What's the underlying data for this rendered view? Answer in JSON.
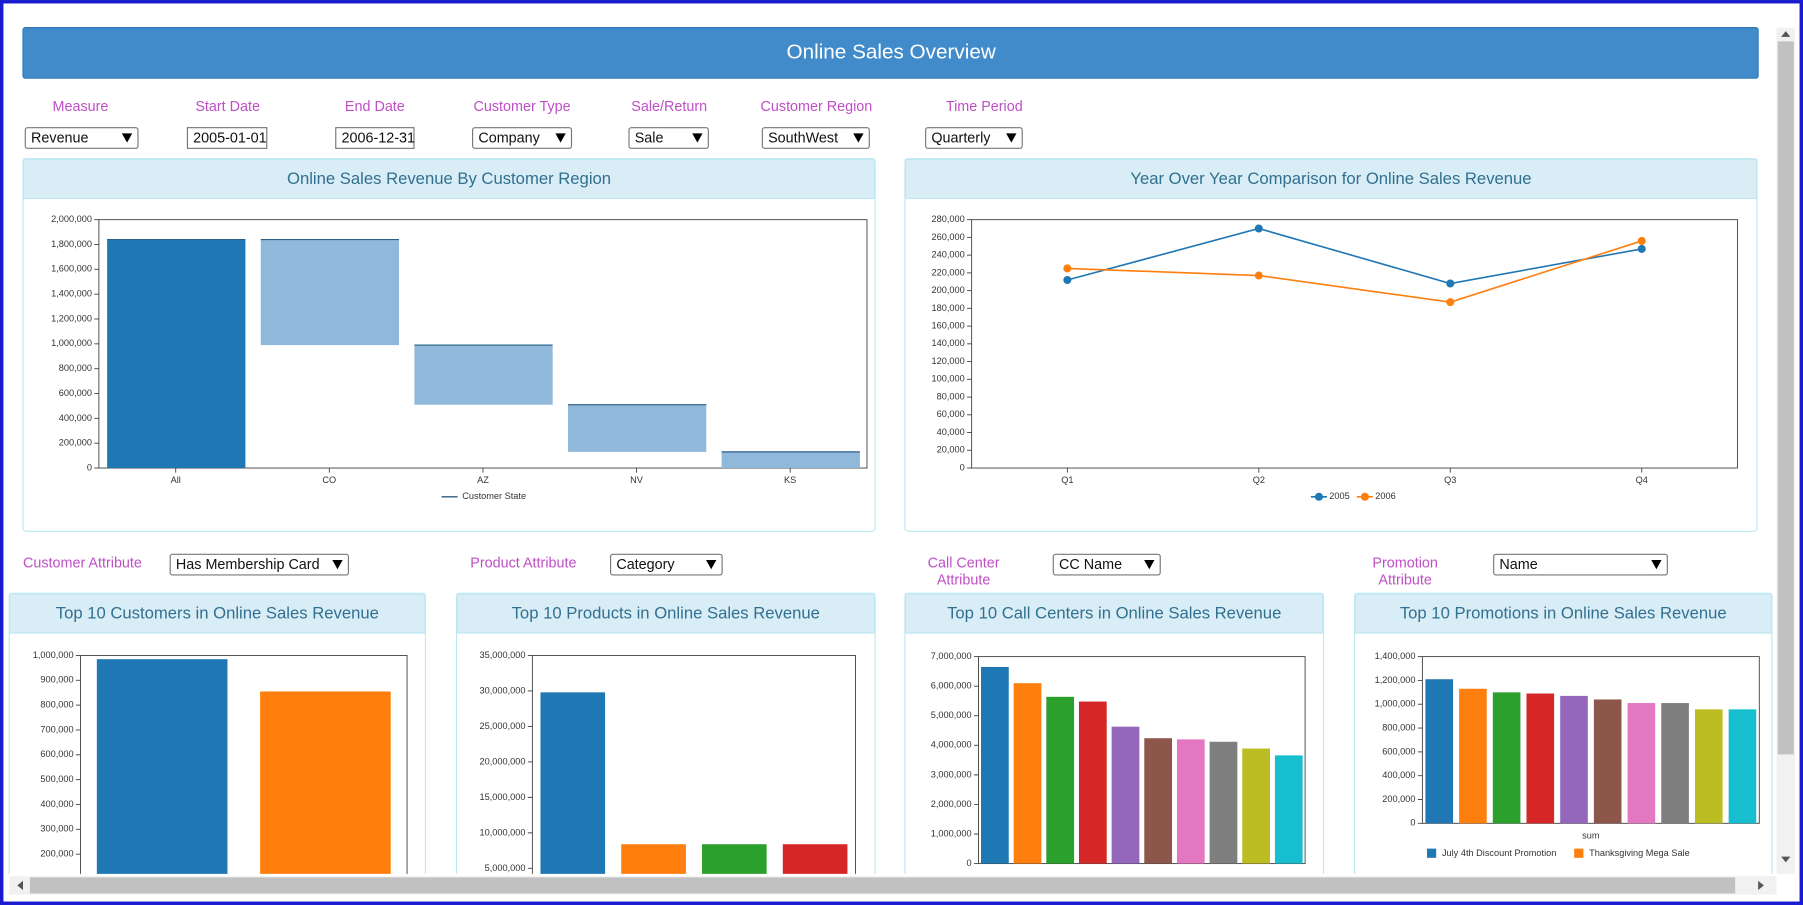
{
  "header": {
    "title": "Online Sales Overview"
  },
  "filters": [
    {
      "label": [
        "Measure"
      ],
      "value": "Revenue"
    },
    {
      "label": [
        "Start Date"
      ],
      "value": "2005-01-01"
    },
    {
      "label": [
        "End Date"
      ],
      "value": "2006-12-31"
    },
    {
      "label": [
        "Customer Type"
      ],
      "value": "Company"
    },
    {
      "label": [
        "Sale/Return"
      ],
      "value": "Sale"
    },
    {
      "label": [
        "Customer Region"
      ],
      "value": "SouthWest"
    },
    {
      "label": [
        "Time Period"
      ],
      "value": "Quarterly"
    },
    {
      "label": [
        "Customer Attribute"
      ],
      "value": "Has Membership Card"
    },
    {
      "label": [
        "Product Attribute"
      ],
      "value": "Category"
    },
    {
      "label": [
        "Call Center",
        "Attribute"
      ],
      "value": "CC Name"
    },
    {
      "label": [
        "Promotion",
        "Attribute"
      ],
      "value": "Name"
    }
  ],
  "chart_data": [
    {
      "type": "waterfall",
      "title": "Online Sales Revenue By Customer Region",
      "categories": [
        "All",
        "CO",
        "AZ",
        "NV",
        "KS"
      ],
      "values": [
        1840000,
        850000,
        480000,
        380000,
        130000
      ],
      "total_color": "#1f77b4",
      "color": "#8fb8db",
      "legend": "Customer State",
      "ylim": [
        0,
        2000000
      ],
      "yticks": [
        0,
        {
          "value": 200000,
          "label": "200,000"
        },
        {
          "value": 400000,
          "label": "400,000"
        },
        {
          "value": 600000,
          "label": "600,000"
        },
        {
          "value": 800000,
          "label": "800,000"
        },
        {
          "value": 1000000,
          "label": "1,000,000"
        },
        {
          "value": 1200000,
          "label": "1,200,000"
        },
        {
          "value": 1400000,
          "label": "1,400,000"
        },
        {
          "value": 1600000,
          "label": "1,600,000"
        },
        {
          "value": 1800000,
          "label": "1,800,000"
        },
        {
          "value": 2000000,
          "label": "2,000,000"
        }
      ]
    },
    {
      "type": "line",
      "title": "Year Over Year Comparison for Online Sales Revenue",
      "categories": [
        "Q1",
        "Q2",
        "Q3",
        "Q4"
      ],
      "series": [
        {
          "name": "2005",
          "color": "#1f77b4",
          "values": [
            212000,
            270000,
            208000,
            247000
          ]
        },
        {
          "name": "2006",
          "color": "#ff7f0e",
          "values": [
            225000,
            217000,
            187000,
            256000
          ]
        }
      ],
      "ylim": [
        0,
        280000
      ],
      "yticks": [
        0,
        {
          "value": 20000,
          "label": "20,000"
        },
        {
          "value": 40000,
          "label": "40,000"
        },
        {
          "value": 60000,
          "label": "60,000"
        },
        {
          "value": 80000,
          "label": "80,000"
        },
        {
          "value": 100000,
          "label": "100,000"
        },
        {
          "value": 120000,
          "label": "120,000"
        },
        {
          "value": 140000,
          "label": "140,000"
        },
        {
          "value": 160000,
          "label": "160,000"
        },
        {
          "value": 180000,
          "label": "180,000"
        },
        {
          "value": 200000,
          "label": "200,000"
        },
        {
          "value": 220000,
          "label": "220,000"
        },
        {
          "value": 240000,
          "label": "240,000"
        },
        {
          "value": 260000,
          "label": "260,000"
        },
        {
          "value": 280000,
          "label": "280,000"
        }
      ]
    },
    {
      "type": "bar",
      "title": "Top 10 Customers in Online Sales Revenue",
      "values": [
        985000,
        855000
      ],
      "colors": [
        "#1f77b4",
        "#ff7f0e"
      ],
      "ylim": [
        0,
        1000000
      ],
      "yticks": [
        {
          "value": 200000,
          "label": "200,000"
        },
        {
          "value": 300000,
          "label": "300,000"
        },
        {
          "value": 400000,
          "label": "400,000"
        },
        {
          "value": 500000,
          "label": "500,000"
        },
        {
          "value": 600000,
          "label": "600,000"
        },
        {
          "value": 700000,
          "label": "700,000"
        },
        {
          "value": 800000,
          "label": "800,000"
        },
        {
          "value": 900000,
          "label": "900,000"
        },
        {
          "value": 1000000,
          "label": "1,000,000"
        }
      ]
    },
    {
      "type": "bar",
      "title": "Top 10 Products in Online Sales Revenue",
      "values": [
        29800000,
        8400000,
        8400000,
        8400000
      ],
      "colors": [
        "#1f77b4",
        "#ff7f0e",
        "#2ca02c",
        "#d62728"
      ],
      "ylim": [
        0,
        35000000
      ],
      "yticks": [
        {
          "value": 5000000,
          "label": "5,000,000"
        },
        {
          "value": 10000000,
          "label": "10,000,000"
        },
        {
          "value": 15000000,
          "label": "15,000,000"
        },
        {
          "value": 20000000,
          "label": "20,000,000"
        },
        {
          "value": 25000000,
          "label": "25,000,000"
        },
        {
          "value": 30000000,
          "label": "30,000,000"
        },
        {
          "value": 35000000,
          "label": "35,000,000"
        }
      ]
    },
    {
      "type": "bar",
      "title": "Top 10 Call Centers in Online Sales Revenue",
      "values": [
        6650000,
        6100000,
        5640000,
        5480000,
        4630000,
        4240000,
        4200000,
        4120000,
        3890000,
        3660000
      ],
      "colors": [
        "#1f77b4",
        "#ff7f0e",
        "#2ca02c",
        "#d62728",
        "#9467bd",
        "#8c564b",
        "#e377c2",
        "#7f7f7f",
        "#bcbd22",
        "#17becf"
      ],
      "ylim": [
        0,
        7000000
      ],
      "yticks": [
        0,
        {
          "value": 1000000,
          "label": "1,000,000"
        },
        {
          "value": 2000000,
          "label": "2,000,000"
        },
        {
          "value": 3000000,
          "label": "3,000,000"
        },
        {
          "value": 4000000,
          "label": "4,000,000"
        },
        {
          "value": 5000000,
          "label": "5,000,000"
        },
        {
          "value": 6000000,
          "label": "6,000,000"
        },
        {
          "value": 7000000,
          "label": "7,000,000"
        }
      ]
    },
    {
      "type": "bar",
      "title": "Top 10 Promotions in Online Sales Revenue",
      "values": [
        1210000,
        1130000,
        1100000,
        1090000,
        1070000,
        1040000,
        1010000,
        1010000,
        957000,
        957000
      ],
      "colors": [
        "#1f77b4",
        "#ff7f0e",
        "#2ca02c",
        "#d62728",
        "#9467bd",
        "#8c564b",
        "#e377c2",
        "#7f7f7f",
        "#bcbd22",
        "#17becf"
      ],
      "xlabel": "sum",
      "legend": [
        "July 4th Discount Promotion",
        "Thanksgiving Mega Sale"
      ],
      "ylim": [
        0,
        1400000
      ],
      "yticks": [
        0,
        {
          "value": 200000,
          "label": "200,000"
        },
        {
          "value": 400000,
          "label": "400,000"
        },
        {
          "value": 600000,
          "label": "600,000"
        },
        {
          "value": 800000,
          "label": "800,000"
        },
        {
          "value": 1000000,
          "label": "1,000,000"
        },
        {
          "value": 1200000,
          "label": "1,200,000"
        },
        {
          "value": 1400000,
          "label": "1,400,000"
        }
      ]
    }
  ]
}
